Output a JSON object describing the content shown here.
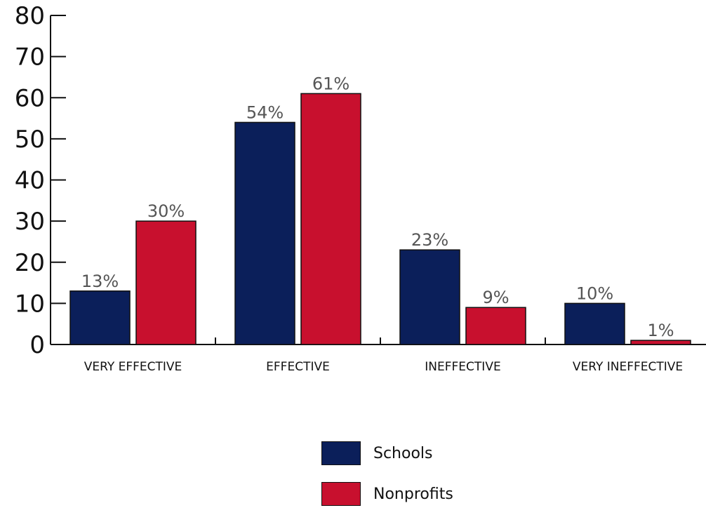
{
  "chart_data": {
    "type": "bar",
    "categories": [
      "VERY EFFECTIVE",
      "EFFECTIVE",
      "INEFFECTIVE",
      "VERY INEFFECTIVE"
    ],
    "series": [
      {
        "name": "Schools",
        "values": [
          13,
          54,
          23,
          10
        ],
        "labels": [
          "13%",
          "54%",
          "23%",
          "10%"
        ],
        "color": "#0b1f5a"
      },
      {
        "name": "Nonprofits",
        "values": [
          30,
          61,
          9,
          1
        ],
        "labels": [
          "30%",
          "61%",
          "9%",
          "1%"
        ],
        "color": "#c8102e"
      }
    ],
    "ylim": [
      0,
      80
    ],
    "yticks": [
      0,
      10,
      20,
      30,
      40,
      50,
      60,
      70,
      80
    ],
    "legend_position": "bottom-center",
    "grid": false
  }
}
